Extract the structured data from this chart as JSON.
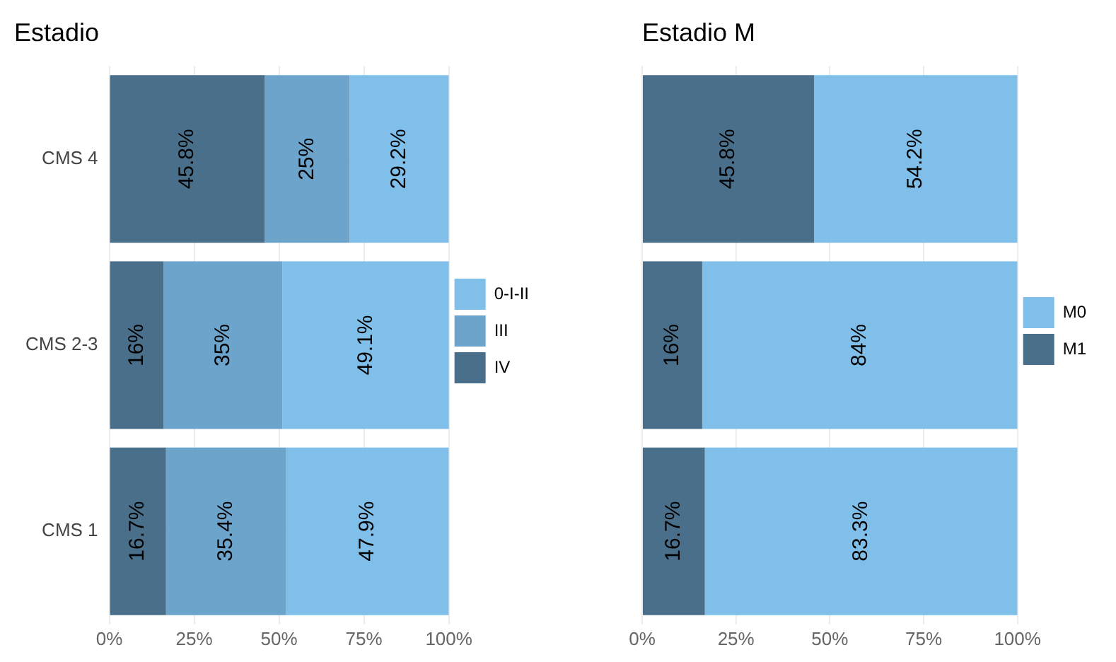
{
  "chart_data": [
    {
      "type": "bar",
      "title": "Estadio",
      "orientation": "horizontal",
      "stacked": true,
      "categories": [
        "CMS 4",
        "CMS 2-3",
        "CMS 1"
      ],
      "series": [
        {
          "name": "IV",
          "color": "#4a6f8b",
          "values": [
            45.8,
            16,
            16.7
          ],
          "value_labels": [
            "45.8%",
            "16%",
            "16.7%"
          ]
        },
        {
          "name": "III",
          "color": "#6ca4cc",
          "values": [
            25,
            35,
            35.4
          ],
          "value_labels": [
            "25%",
            "35%",
            "35.4%"
          ]
        },
        {
          "name": "0-I-II",
          "color": "#7fbfea",
          "values": [
            29.2,
            49.1,
            47.9
          ],
          "value_labels": [
            "29.2%",
            "49.1%",
            "47.9%"
          ]
        }
      ],
      "xlim": [
        0,
        100
      ],
      "xticks": [
        {
          "value": 0,
          "label": "0%"
        },
        {
          "value": 25,
          "label": "25%"
        },
        {
          "value": 50,
          "label": "50%"
        },
        {
          "value": 75,
          "label": "75%"
        },
        {
          "value": 100,
          "label": "100%"
        }
      ],
      "grid": true,
      "legend": "right"
    },
    {
      "type": "bar",
      "title": "Estadio M",
      "orientation": "horizontal",
      "stacked": true,
      "categories": [
        null,
        null,
        null
      ],
      "series": [
        {
          "name": "M1",
          "color": "#4a6f8b",
          "values": [
            45.8,
            16,
            16.7
          ],
          "value_labels": [
            "45.8%",
            "16%",
            "16.7%"
          ]
        },
        {
          "name": "M0",
          "color": "#7fbfea",
          "values": [
            54.2,
            84,
            83.3
          ],
          "value_labels": [
            "54.2%",
            "84%",
            "83.3%"
          ]
        }
      ],
      "xlim": [
        0,
        100
      ],
      "xticks": [
        {
          "value": 0,
          "label": "0%"
        },
        {
          "value": 25,
          "label": "25%"
        },
        {
          "value": 50,
          "label": "50%"
        },
        {
          "value": 75,
          "label": "75%"
        },
        {
          "value": 100,
          "label": "100%"
        }
      ],
      "grid": true,
      "legend": "right",
      "tick_labels": "x"
    }
  ]
}
